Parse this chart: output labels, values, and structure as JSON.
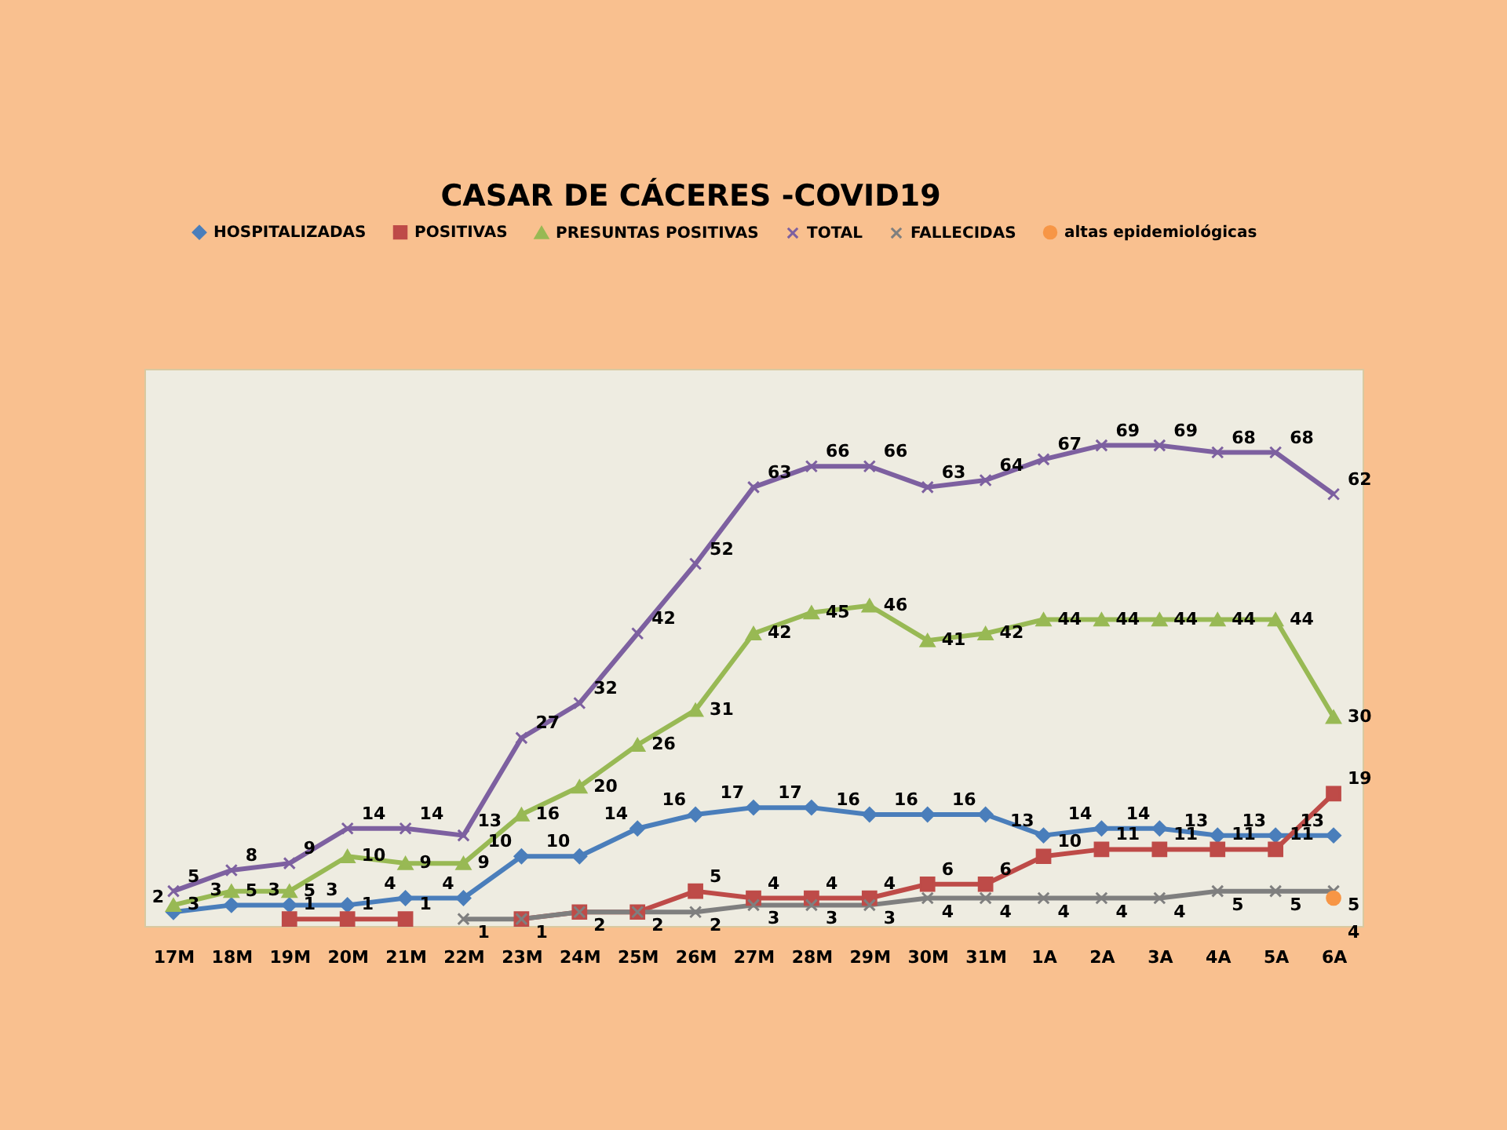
{
  "chart_data": {
    "type": "line",
    "title": "CASAR DE CÁCERES -COVID19",
    "categories": [
      "17M",
      "18M",
      "19M",
      "20M",
      "21M",
      "22M",
      "23M",
      "24M",
      "25M",
      "26M",
      "27M",
      "28M",
      "29M",
      "30M",
      "31M",
      "1A",
      "2A",
      "3A",
      "4A",
      "5A",
      "6A"
    ],
    "ylim": [
      0,
      80
    ],
    "grid": false,
    "legend": "top",
    "tick_labels": "x",
    "series": [
      {
        "name": "HOSPITALIZADAS",
        "color": "#4a7ebb",
        "marker": "diamond",
        "values": [
          2,
          3,
          3,
          3,
          4,
          4,
          10,
          10,
          14,
          16,
          17,
          17,
          16,
          16,
          16,
          13,
          14,
          14,
          13,
          13,
          13
        ],
        "value_labels": [
          "2",
          "3",
          "3",
          "3",
          "4",
          "4",
          "10",
          "10",
          "14",
          "16",
          "17",
          "17",
          "16",
          "16",
          "16",
          "13",
          "14",
          "14",
          "13",
          "13",
          "13"
        ]
      },
      {
        "name": "POSITIVAS",
        "color": "#be4b48",
        "marker": "square",
        "values": [
          null,
          null,
          1,
          1,
          1,
          null,
          1,
          2,
          2,
          5,
          4,
          4,
          4,
          6,
          6,
          10,
          11,
          11,
          11,
          11,
          19
        ],
        "value_labels": [
          null,
          null,
          "1",
          "1",
          "1",
          null,
          null,
          null,
          null,
          "5",
          "4",
          "4",
          "4",
          "6",
          "6",
          "10",
          "11",
          "11",
          "11",
          "11",
          "19"
        ]
      },
      {
        "name": "PRESUNTAS POSITIVAS",
        "color": "#98b954",
        "marker": "triangle",
        "values": [
          3,
          5,
          5,
          10,
          9,
          9,
          16,
          20,
          26,
          31,
          42,
          45,
          46,
          41,
          42,
          44,
          44,
          44,
          44,
          44,
          30
        ],
        "value_labels": [
          "3",
          "5",
          "5",
          "10",
          "9",
          "9",
          "16",
          "20",
          "26",
          "31",
          "42",
          "45",
          "46",
          "41",
          "42",
          "44",
          "44",
          "44",
          "44",
          "44",
          "30"
        ]
      },
      {
        "name": "TOTAL",
        "color": "#7d60a0",
        "marker": "cross",
        "values": [
          5,
          8,
          9,
          14,
          14,
          13,
          27,
          32,
          42,
          52,
          63,
          66,
          66,
          63,
          64,
          67,
          69,
          69,
          68,
          68,
          62
        ],
        "value_labels": [
          "5",
          "8",
          "9",
          "14",
          "14",
          "13",
          "27",
          "32",
          "42",
          "52",
          "63",
          "66",
          "66",
          "63",
          "64",
          "67",
          "69",
          "69",
          "68",
          "68",
          "62"
        ]
      },
      {
        "name": "FALLECIDAS",
        "color": "#7f7f7f",
        "marker": "cross",
        "values": [
          null,
          null,
          null,
          null,
          null,
          1,
          1,
          2,
          2,
          2,
          3,
          3,
          3,
          4,
          4,
          4,
          4,
          4,
          5,
          5,
          5
        ],
        "value_labels": [
          null,
          null,
          null,
          null,
          null,
          "1",
          "1",
          "2",
          "2",
          "2",
          "3",
          "3",
          "3",
          "4",
          "4",
          "4",
          "4",
          "4",
          "5",
          "5",
          "5"
        ]
      },
      {
        "name": "altas epidemiológicas",
        "color": "#f79646",
        "marker": "circle",
        "values": [
          null,
          null,
          null,
          null,
          null,
          null,
          null,
          null,
          null,
          null,
          null,
          null,
          null,
          null,
          null,
          null,
          null,
          null,
          null,
          null,
          4
        ],
        "value_labels": [
          null,
          null,
          null,
          null,
          null,
          null,
          null,
          null,
          null,
          null,
          null,
          null,
          null,
          null,
          null,
          null,
          null,
          null,
          null,
          null,
          "4"
        ]
      }
    ]
  }
}
